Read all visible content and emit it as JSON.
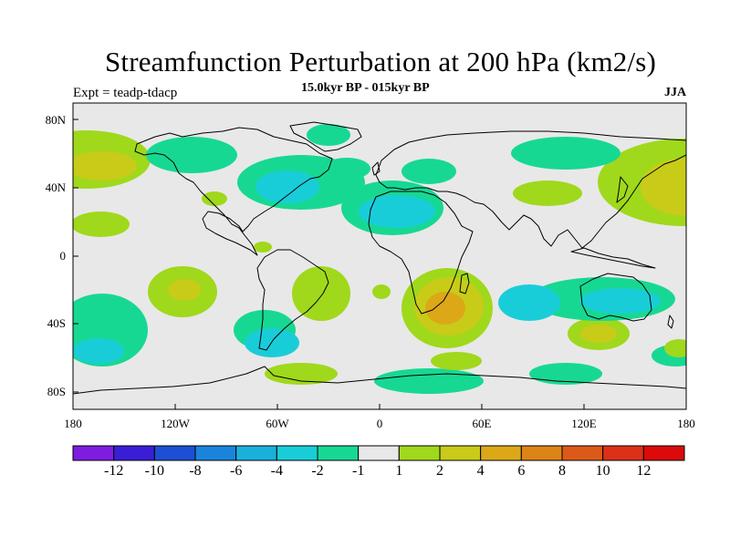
{
  "title": "Streamfunction Perturbation at 200 hPa (km2/s)",
  "subtitle": "15.0kyr BP - 015kyr BP",
  "expt_label": "Expt = teadp-tdacp",
  "season": "JJA",
  "lat_labels": [
    "80N",
    "40N",
    "0",
    "40S",
    "80S"
  ],
  "lon_labels": [
    "180",
    "120W",
    "60W",
    "0",
    "60E",
    "120E",
    "180"
  ],
  "colorbar": {
    "labels": [
      "-12",
      "-10",
      "-8",
      "-6",
      "-4",
      "-2",
      "-1",
      "1",
      "2",
      "4",
      "6",
      "8",
      "10",
      "12"
    ],
    "colors": [
      "#7e1de0",
      "#3a1ed6",
      "#1c4fd4",
      "#1a84dc",
      "#1ab0dc",
      "#19cdd8",
      "#17d893",
      "#e8e8e8",
      "#a0d81c",
      "#c9cb19",
      "#dca818",
      "#dc8418",
      "#dc5a18",
      "#dc3018",
      "#dc0a0a"
    ]
  },
  "map_colors": {
    "background": "#e8e8e8",
    "neg1": "#17d893",
    "neg2": "#19cdd8",
    "pos1": "#a0d81c",
    "pos2": "#c9cb19",
    "pos4": "#dca818"
  }
}
